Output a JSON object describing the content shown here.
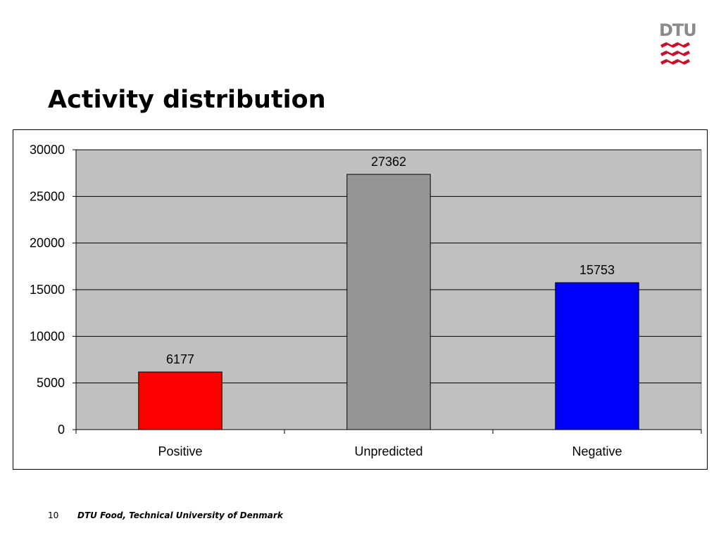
{
  "header": {
    "logo_text": "DTU",
    "logo_color": "#c8102e",
    "title": "Activity distribution"
  },
  "chart_data": {
    "type": "bar",
    "categories": [
      "Positive",
      "Unpredicted",
      "Negative"
    ],
    "values": [
      6177,
      27362,
      15753
    ],
    "data_labels": [
      "6177",
      "27362",
      "15753"
    ],
    "bar_colors": [
      "#ff0000",
      "#969696",
      "#0000ff"
    ],
    "plot_background": "#c0c0c0",
    "title": "",
    "xlabel": "",
    "ylabel": "",
    "ylim": [
      0,
      30000
    ],
    "yticks": [
      0,
      5000,
      10000,
      15000,
      20000,
      25000,
      30000
    ],
    "ytick_labels": [
      "0",
      "5000",
      "10000",
      "15000",
      "20000",
      "25000",
      "30000"
    ],
    "grid": true,
    "legend": "none"
  },
  "footer": {
    "page_number": "10",
    "text": "DTU Food, Technical University of Denmark"
  }
}
